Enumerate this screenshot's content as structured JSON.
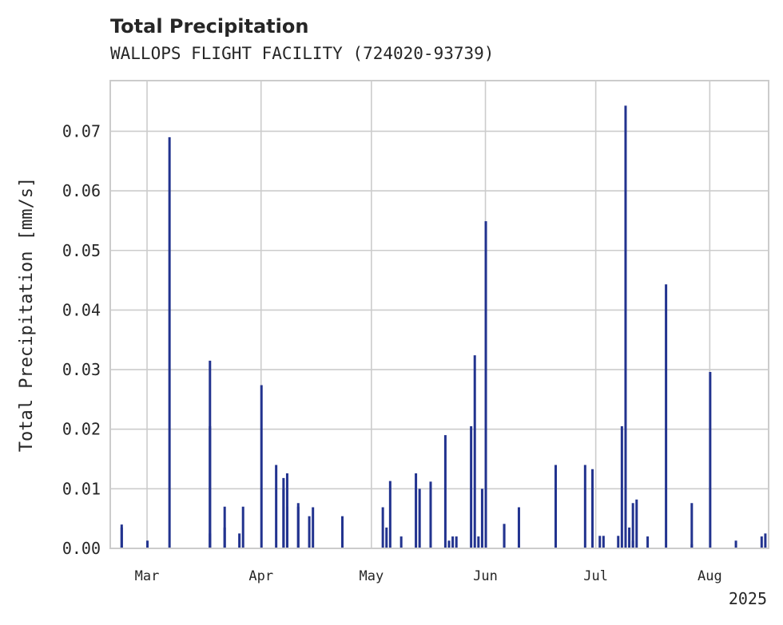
{
  "chart_data": {
    "type": "bar",
    "title": "Total Precipitation",
    "subtitle": "WALLOPS FLIGHT FACILITY (724020-93739)",
    "ylabel": "Total Precipitation [mm/s]",
    "xlabel": "",
    "year_label": "2025",
    "ylim": [
      0,
      0.0785
    ],
    "xlim": [
      "2025-02-19",
      "2025-08-17"
    ],
    "grid": true,
    "yticks": [
      {
        "value": 0.0,
        "label": "0.00"
      },
      {
        "value": 0.01,
        "label": "0.01"
      },
      {
        "value": 0.02,
        "label": "0.02"
      },
      {
        "value": 0.03,
        "label": "0.03"
      },
      {
        "value": 0.04,
        "label": "0.04"
      },
      {
        "value": 0.05,
        "label": "0.05"
      },
      {
        "value": 0.06,
        "label": "0.06"
      },
      {
        "value": 0.07,
        "label": "0.07"
      }
    ],
    "xticks": [
      {
        "value": "2025-03-01",
        "label": "Mar"
      },
      {
        "value": "2025-04-01",
        "label": "Apr"
      },
      {
        "value": "2025-05-01",
        "label": "May"
      },
      {
        "value": "2025-06-01",
        "label": "Jun"
      },
      {
        "value": "2025-07-01",
        "label": "Jul"
      },
      {
        "value": "2025-08-01",
        "label": "Aug"
      }
    ],
    "bar_color": "#22338f",
    "series": [
      {
        "x": [
          "2025-02-22",
          "2025-02-22",
          "2025-03-01",
          "2025-03-07",
          "2025-03-18",
          "2025-03-18",
          "2025-03-18",
          "2025-03-22",
          "2025-03-22",
          "2025-03-26",
          "2025-03-27",
          "2025-04-01",
          "2025-04-05",
          "2025-04-07",
          "2025-04-07",
          "2025-04-08",
          "2025-04-08",
          "2025-04-11",
          "2025-04-11",
          "2025-04-14",
          "2025-04-15",
          "2025-04-23",
          "2025-05-04",
          "2025-05-05",
          "2025-05-06",
          "2025-05-09",
          "2025-05-13",
          "2025-05-14",
          "2025-05-17",
          "2025-05-21",
          "2025-05-22",
          "2025-05-23",
          "2025-05-24",
          "2025-05-28",
          "2025-05-29",
          "2025-05-30",
          "2025-05-31",
          "2025-06-01",
          "2025-06-06",
          "2025-06-06",
          "2025-06-10",
          "2025-06-20",
          "2025-06-28",
          "2025-06-30",
          "2025-07-02",
          "2025-07-03",
          "2025-07-07",
          "2025-07-08",
          "2025-07-09",
          "2025-07-10",
          "2025-07-11",
          "2025-07-11",
          "2025-07-12",
          "2025-07-15",
          "2025-07-20",
          "2025-07-27",
          "2025-07-27",
          "2025-08-01",
          "2025-08-08",
          "2025-08-15",
          "2025-08-16"
        ],
        "values": [
          0.004,
          0.0035,
          0.0013,
          0.069,
          0.0205,
          0.0315,
          0.0025,
          0.0035,
          0.007,
          0.0025,
          0.007,
          0.0274,
          0.014,
          0.01,
          0.0118,
          0.007,
          0.0126,
          0.007,
          0.0076,
          0.0054,
          0.0069,
          0.0054,
          0.0069,
          0.0035,
          0.0113,
          0.002,
          0.0126,
          0.01,
          0.0112,
          0.019,
          0.0013,
          0.002,
          0.002,
          0.0205,
          0.0324,
          0.002,
          0.01,
          0.0549,
          0.0041,
          0.0041,
          0.0069,
          0.014,
          0.014,
          0.0133,
          0.0021,
          0.0021,
          0.0021,
          0.0205,
          0.0743,
          0.0035,
          0.0013,
          0.0076,
          0.0082,
          0.002,
          0.0443,
          0.0007,
          0.0076,
          0.0296,
          0.0013,
          0.002,
          0.0025
        ]
      }
    ]
  }
}
